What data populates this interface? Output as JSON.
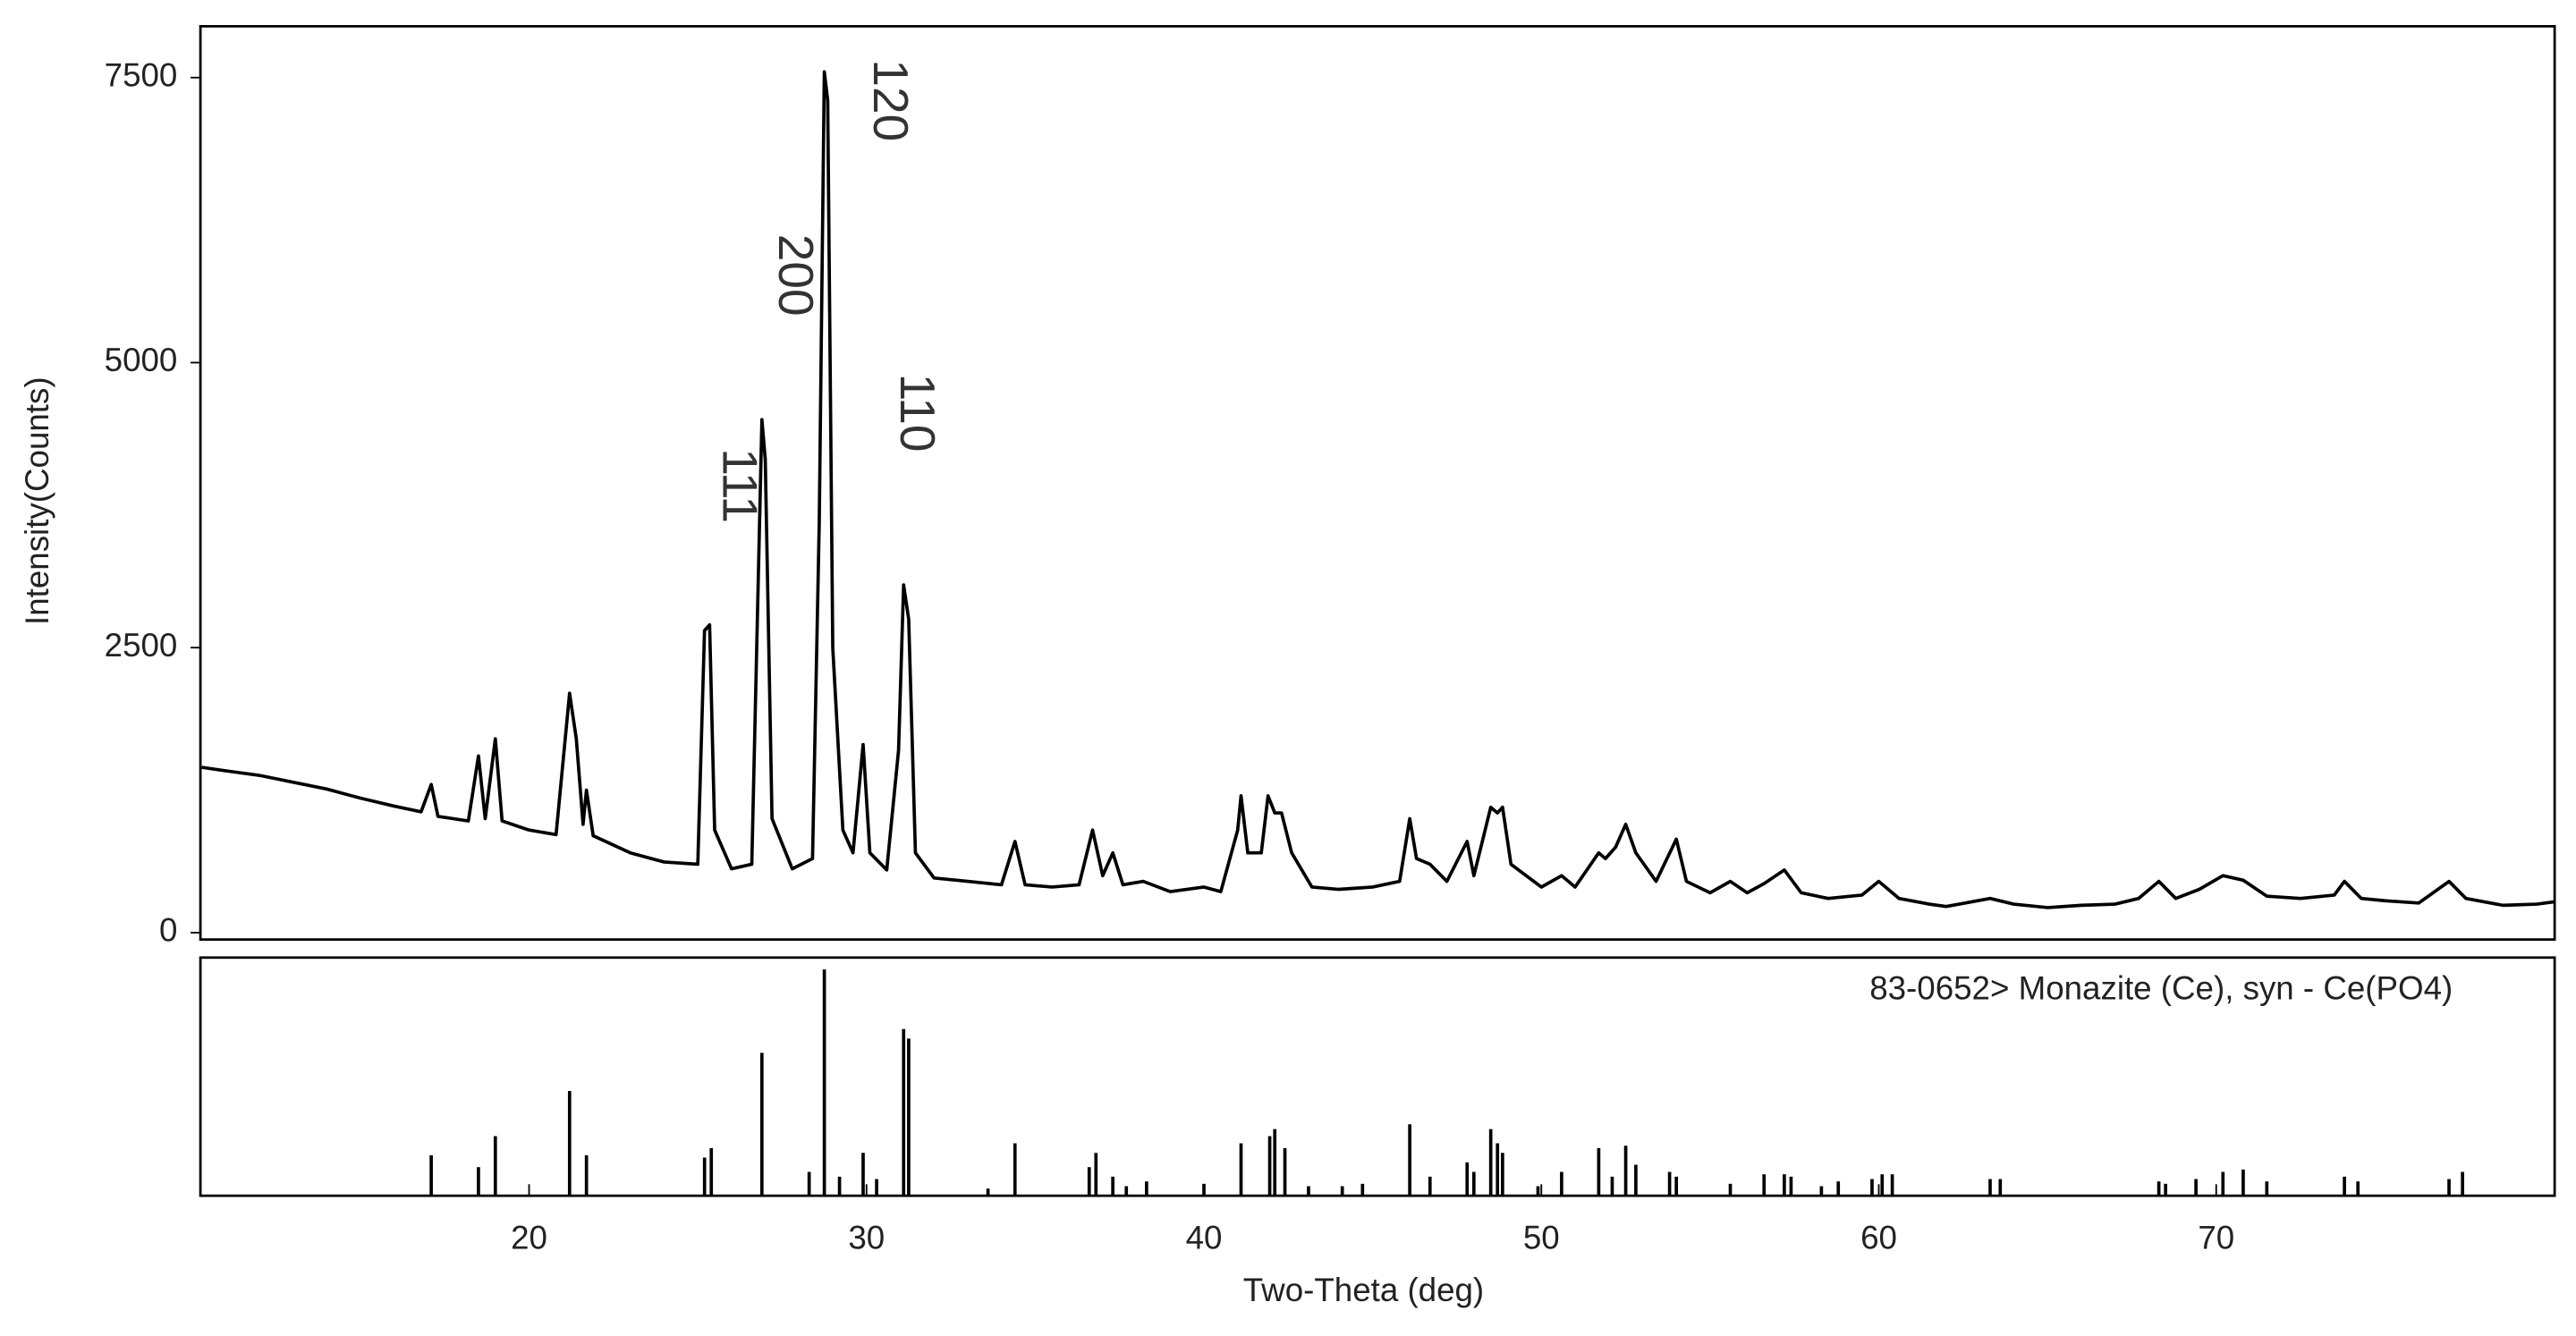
{
  "chart_data": [
    {
      "type": "line",
      "y_label": "Intensity(Counts)",
      "color": "#000000",
      "xlim": [
        10.26,
        80.03
      ],
      "ylim": [
        -60,
        7950
      ],
      "yticks": [
        0,
        2500,
        5000,
        7500
      ],
      "x": [
        10.3,
        11,
        12,
        13,
        14,
        15,
        16,
        16.8,
        17.1,
        17.3,
        18.2,
        18.5,
        18.7,
        19.0,
        19.2,
        20.0,
        20.8,
        21.2,
        21.4,
        21.6,
        21.7,
        21.9,
        23,
        24,
        25.0,
        25.2,
        25.35,
        25.5,
        26.0,
        26.6,
        26.9,
        27.0,
        27.2,
        27.8,
        28.4,
        28.6,
        28.75,
        28.85,
        29.0,
        29.3,
        29.6,
        29.9,
        30.1,
        30.6,
        30.95,
        31.1,
        31.25,
        31.45,
        32,
        33,
        34.0,
        34.4,
        34.7,
        35.5,
        36.3,
        36.7,
        37.0,
        37.3,
        37.6,
        38.2,
        39,
        40,
        40.5,
        41.0,
        41.1,
        41.3,
        41.7,
        41.9,
        42.1,
        42.3,
        42.6,
        43.2,
        44,
        45,
        45.8,
        46.1,
        46.3,
        46.7,
        47.2,
        47.8,
        48.0,
        48.5,
        48.7,
        48.85,
        49.1,
        50,
        50.6,
        51,
        51.7,
        51.9,
        52.2,
        52.5,
        52.8,
        53.4,
        54.0,
        54.3,
        55,
        55.6,
        56.1,
        56.6,
        57.2,
        57.7,
        58.5,
        59.5,
        60.0,
        60.6,
        61.5,
        62,
        63.3,
        64,
        65,
        66,
        67,
        67.7,
        68.3,
        68.8,
        69.5,
        70.2,
        70.8,
        71.5,
        72.5,
        73.5,
        73.8,
        74.3,
        75,
        76,
        76.9,
        77.4,
        78.5,
        79.5,
        80.0
      ],
      "values": [
        1450,
        1420,
        1380,
        1320,
        1260,
        1180,
        1110,
        1060,
        1300,
        1020,
        980,
        1550,
        1000,
        1700,
        980,
        900,
        860,
        2100,
        1700,
        950,
        1250,
        850,
        700,
        620,
        600,
        2650,
        2700,
        900,
        560,
        600,
        4500,
        4150,
        1000,
        560,
        650,
        3600,
        7550,
        7300,
        2500,
        900,
        700,
        1650,
        700,
        550,
        1600,
        3050,
        2750,
        700,
        480,
        450,
        420,
        800,
        420,
        400,
        420,
        900,
        500,
        700,
        420,
        450,
        360,
        400,
        360,
        900,
        1200,
        700,
        700,
        1200,
        1050,
        1050,
        700,
        400,
        380,
        400,
        450,
        1000,
        650,
        600,
        450,
        800,
        500,
        1100,
        1050,
        1100,
        600,
        400,
        500,
        400,
        700,
        650,
        750,
        950,
        700,
        450,
        820,
        450,
        350,
        450,
        350,
        430,
        550,
        350,
        300,
        330,
        450,
        300,
        250,
        230,
        300,
        250,
        220,
        240,
        250,
        300,
        450,
        300,
        380,
        500,
        460,
        320,
        300,
        330,
        450,
        300,
        280,
        260,
        450,
        300,
        240,
        250,
        270
      ],
      "annotations": [
        {
          "text": "111",
          "x": 26.14,
          "y": 3920
        },
        {
          "text": "200",
          "x": 27.8,
          "y": 5767
        },
        {
          "text": "120",
          "x": 30.6,
          "y": 7300
        },
        {
          "text": "110",
          "x": 31.4,
          "y": 4560
        }
      ]
    },
    {
      "type": "bar",
      "x_label": "Two-Theta (deg)",
      "xlim": [
        10.26,
        80.03
      ],
      "ylim": [
        0,
        100
      ],
      "xticks": [
        20,
        30,
        40,
        50,
        60,
        70
      ],
      "x": [
        17.1,
        18.5,
        19.0,
        21.2,
        21.7,
        25.2,
        25.4,
        26.9,
        28.3,
        28.75,
        29.2,
        29.9,
        30.3,
        31.1,
        31.25,
        33.6,
        34.4,
        36.6,
        36.8,
        37.3,
        37.7,
        38.3,
        40.0,
        41.1,
        41.95,
        42.1,
        42.4,
        43.1,
        44.1,
        44.7,
        46.1,
        46.7,
        47.8,
        48.0,
        48.5,
        48.7,
        48.85,
        49.9,
        50.6,
        51.7,
        52.1,
        52.5,
        52.8,
        53.8,
        54.0,
        55.6,
        56.6,
        57.2,
        57.4,
        58.3,
        58.8,
        59.8,
        60.1,
        60.4,
        63.3,
        63.6,
        68.3,
        68.5,
        69.4,
        70.2,
        70.8,
        71.5,
        73.8,
        74.2,
        76.9,
        77.3
      ],
      "series": [
        {
          "name": "83-0652> Monazite (Ce), syn - Ce(PO4)",
          "color": "#000000",
          "values": [
            17,
            12,
            25,
            44,
            17,
            16,
            20,
            60,
            10,
            95,
            8,
            18,
            7,
            70,
            66,
            3,
            22,
            12,
            18,
            8,
            4,
            6,
            5,
            22,
            25,
            28,
            20,
            4,
            4,
            5,
            30,
            8,
            14,
            10,
            28,
            22,
            18,
            4,
            10,
            20,
            8,
            21,
            13,
            10,
            8,
            5,
            9,
            9,
            8,
            4,
            6,
            7,
            9,
            9,
            7,
            7,
            6,
            5,
            7,
            10,
            11,
            6,
            8,
            6,
            7,
            10
          ]
        }
      ]
    }
  ]
}
